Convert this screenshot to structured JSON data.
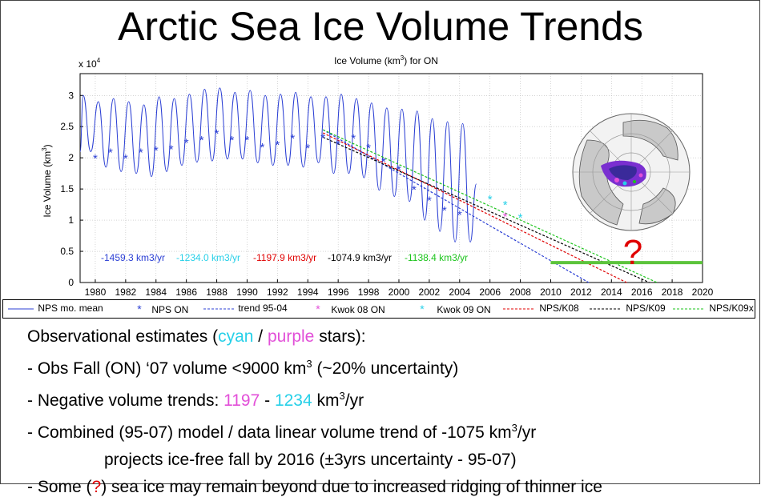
{
  "slide_title": "Arctic Sea Ice Volume Trends",
  "chart_data": {
    "type": "line",
    "title": "Ice Volume (km³) for ON",
    "ylabel": "Ice Volume (km³)",
    "y_multiplier_label": "x 10",
    "y_multiplier_exp": "4",
    "xlim": [
      1979,
      2020
    ],
    "ylim": [
      0,
      33500
    ],
    "x_ticks": [
      1980,
      1982,
      1984,
      1986,
      1988,
      1990,
      1992,
      1994,
      1996,
      1998,
      2000,
      2002,
      2004,
      2006,
      2008,
      2010,
      2012,
      2014,
      2016,
      2018,
      2020
    ],
    "y_ticks": [
      {
        "value": 0,
        "label": "0"
      },
      {
        "value": 5000,
        "label": "0.5"
      },
      {
        "value": 10000,
        "label": "1"
      },
      {
        "value": 15000,
        "label": "1.5"
      },
      {
        "value": 20000,
        "label": "2"
      },
      {
        "value": 25000,
        "label": "2.5"
      },
      {
        "value": 30000,
        "label": "3"
      }
    ],
    "grid": true,
    "series": [
      {
        "name": "NPS mo. mean",
        "kind": "seasonal",
        "color": "#2b3fd4",
        "x_start": 1979.0,
        "x_end": 2005.1,
        "peaks": [
          [
            1979.2,
            30000
          ],
          [
            1980.2,
            29000
          ],
          [
            1981.2,
            29500
          ],
          [
            1982.2,
            29000
          ],
          [
            1983.2,
            28500
          ],
          [
            1984.2,
            29800
          ],
          [
            1985.2,
            29500
          ],
          [
            1986.2,
            30200
          ],
          [
            1987.2,
            31000
          ],
          [
            1988.2,
            31200
          ],
          [
            1989.2,
            30500
          ],
          [
            1990.2,
            30800
          ],
          [
            1991.2,
            30000
          ],
          [
            1992.2,
            30200
          ],
          [
            1993.2,
            30500
          ],
          [
            1994.2,
            29800
          ],
          [
            1995.2,
            29800
          ],
          [
            1996.2,
            30200
          ],
          [
            1997.2,
            29500
          ],
          [
            1998.2,
            28800
          ],
          [
            1999.2,
            28000
          ],
          [
            2000.2,
            27800
          ],
          [
            2001.2,
            27500
          ],
          [
            2002.2,
            26300
          ],
          [
            2003.2,
            25800
          ],
          [
            2004.2,
            25500
          ]
        ],
        "troughs": [
          [
            1979.7,
            21000
          ],
          [
            1980.7,
            18500
          ],
          [
            1981.7,
            17800
          ],
          [
            1982.7,
            17500
          ],
          [
            1983.7,
            17000
          ],
          [
            1984.7,
            17800
          ],
          [
            1985.7,
            18800
          ],
          [
            1986.7,
            19300
          ],
          [
            1987.7,
            19500
          ],
          [
            1988.7,
            19800
          ],
          [
            1989.7,
            19800
          ],
          [
            1990.7,
            19200
          ],
          [
            1991.7,
            18800
          ],
          [
            1992.7,
            18800
          ],
          [
            1993.7,
            18500
          ],
          [
            1994.7,
            19200
          ],
          [
            1995.7,
            17500
          ],
          [
            1996.7,
            17500
          ],
          [
            1997.7,
            16800
          ],
          [
            1998.7,
            14800
          ],
          [
            1999.7,
            13800
          ],
          [
            2000.7,
            13000
          ],
          [
            2001.7,
            10000
          ],
          [
            2002.7,
            8200
          ],
          [
            2003.7,
            6500
          ],
          [
            2004.7,
            6500
          ]
        ]
      },
      {
        "name": "NPS ON",
        "kind": "markers",
        "marker": "*",
        "color": "#2b3fd4",
        "x": [
          1980,
          1981,
          1982,
          1983,
          1984,
          1985,
          1986,
          1987,
          1988,
          1989,
          1990,
          1991,
          1992,
          1993,
          1994,
          1995,
          1996,
          1997,
          1998,
          1999,
          2000,
          2001,
          2002,
          2003,
          2004
        ],
        "y": [
          20000,
          21000,
          20000,
          21000,
          21300,
          21500,
          22500,
          23000,
          24000,
          23000,
          23000,
          21800,
          22200,
          23200,
          21700,
          23300,
          22300,
          23200,
          21700,
          19500,
          18200,
          15000,
          13300,
          11700,
          11000
        ]
      },
      {
        "name": "trend 95-04",
        "kind": "dashed_line",
        "color": "#2b3fd4",
        "x": [
          1995,
          2012.5
        ],
        "y": [
          24500,
          0
        ]
      },
      {
        "name": "Kwok 08 ON",
        "kind": "markers",
        "marker": "*",
        "color": "#e24fd8",
        "x": [
          2007
        ],
        "y": [
          10700
        ]
      },
      {
        "name": "Kwok 09 ON",
        "kind": "markers",
        "marker": "*",
        "color": "#27d0e8",
        "x": [
          2006,
          2007,
          2008
        ],
        "y": [
          13500,
          12600,
          10500
        ]
      },
      {
        "name": "NPS/K08",
        "kind": "dashed_line",
        "color": "#e00000",
        "x": [
          1995,
          2015
        ],
        "y": [
          24000,
          0
        ]
      },
      {
        "name": "NPS/K09",
        "kind": "dashed_line",
        "color": "#000000",
        "x": [
          1995,
          2016.5
        ],
        "y": [
          23300,
          0
        ]
      },
      {
        "name": "NPS/K09x",
        "kind": "dashed_line",
        "color": "#1cc41c",
        "x": [
          1995,
          2017
        ],
        "y": [
          24500,
          0
        ]
      }
    ],
    "annotations": {
      "trend_labels": [
        {
          "text": "-1459.3 km3/yr",
          "color": "#2b3fd4"
        },
        {
          "text": "-1234.0 km3/yr",
          "color": "#27d0e8"
        },
        {
          "text": "-1197.9 km3/yr",
          "color": "#e00000"
        },
        {
          "text": "-1074.9 km3/yr",
          "color": "#000000"
        },
        {
          "text": "-1138.4 km3/yr",
          "color": "#1cc41c"
        }
      ],
      "threshold_line": {
        "x": [
          2010,
          2020
        ],
        "y": 3200,
        "color": "#5cc43c"
      },
      "question_mark": {
        "text": "?",
        "color": "#e00000"
      }
    }
  },
  "legend": [
    {
      "label": "NPS mo. mean",
      "style": "solid",
      "color": "#2b3fd4"
    },
    {
      "label": "NPS ON",
      "style": "star",
      "color": "#2b3fd4"
    },
    {
      "label": "trend 95-04",
      "style": "dashed",
      "color": "#2b3fd4"
    },
    {
      "label": "Kwok 08 ON",
      "style": "star",
      "color": "#e24fd8"
    },
    {
      "label": "Kwok 09 ON",
      "style": "star",
      "color": "#27d0e8"
    },
    {
      "label": "NPS/K08",
      "style": "dashed",
      "color": "#e00000"
    },
    {
      "label": "NPS/K09",
      "style": "dashed",
      "color": "#000000"
    },
    {
      "label": "NPS/K09x",
      "style": "dashed",
      "color": "#1cc41c"
    }
  ],
  "notes": {
    "l1_pre": "Observational estimates (",
    "l1_cyan": "cyan",
    "l1_sep": " / ",
    "l1_purple": "purple",
    "l1_post": " stars):",
    "l2_pre": "- Obs Fall (ON) ‘07 volume <9000 km",
    "l2_sup": "3",
    "l2_post": " (~20% uncertainty)",
    "l3_pre": "- Negative volume trends: ",
    "l3_a": "1197",
    "l3_dash": " - ",
    "l3_b": "1234",
    "l3_unit": " km",
    "l3_sup": "3",
    "l3_post": "/yr",
    "l4_pre": "- Combined (95-07) model / data linear volume trend of -1075 km",
    "l4_sup": "3",
    "l4_post": "/yr",
    "l5": "projects ice-free fall by 2016 (±3yrs uncertainty - 95-07)",
    "l6_pre": "- Some (",
    "l6_q": "?",
    "l6_post": ") sea ice may remain beyond due to increased ridging of thinner ice"
  },
  "colors": {
    "nps_blue": "#2b3fd4",
    "cyan": "#27d0e8",
    "magenta": "#e24fd8",
    "red": "#e00000",
    "green": "#1cc41c"
  }
}
